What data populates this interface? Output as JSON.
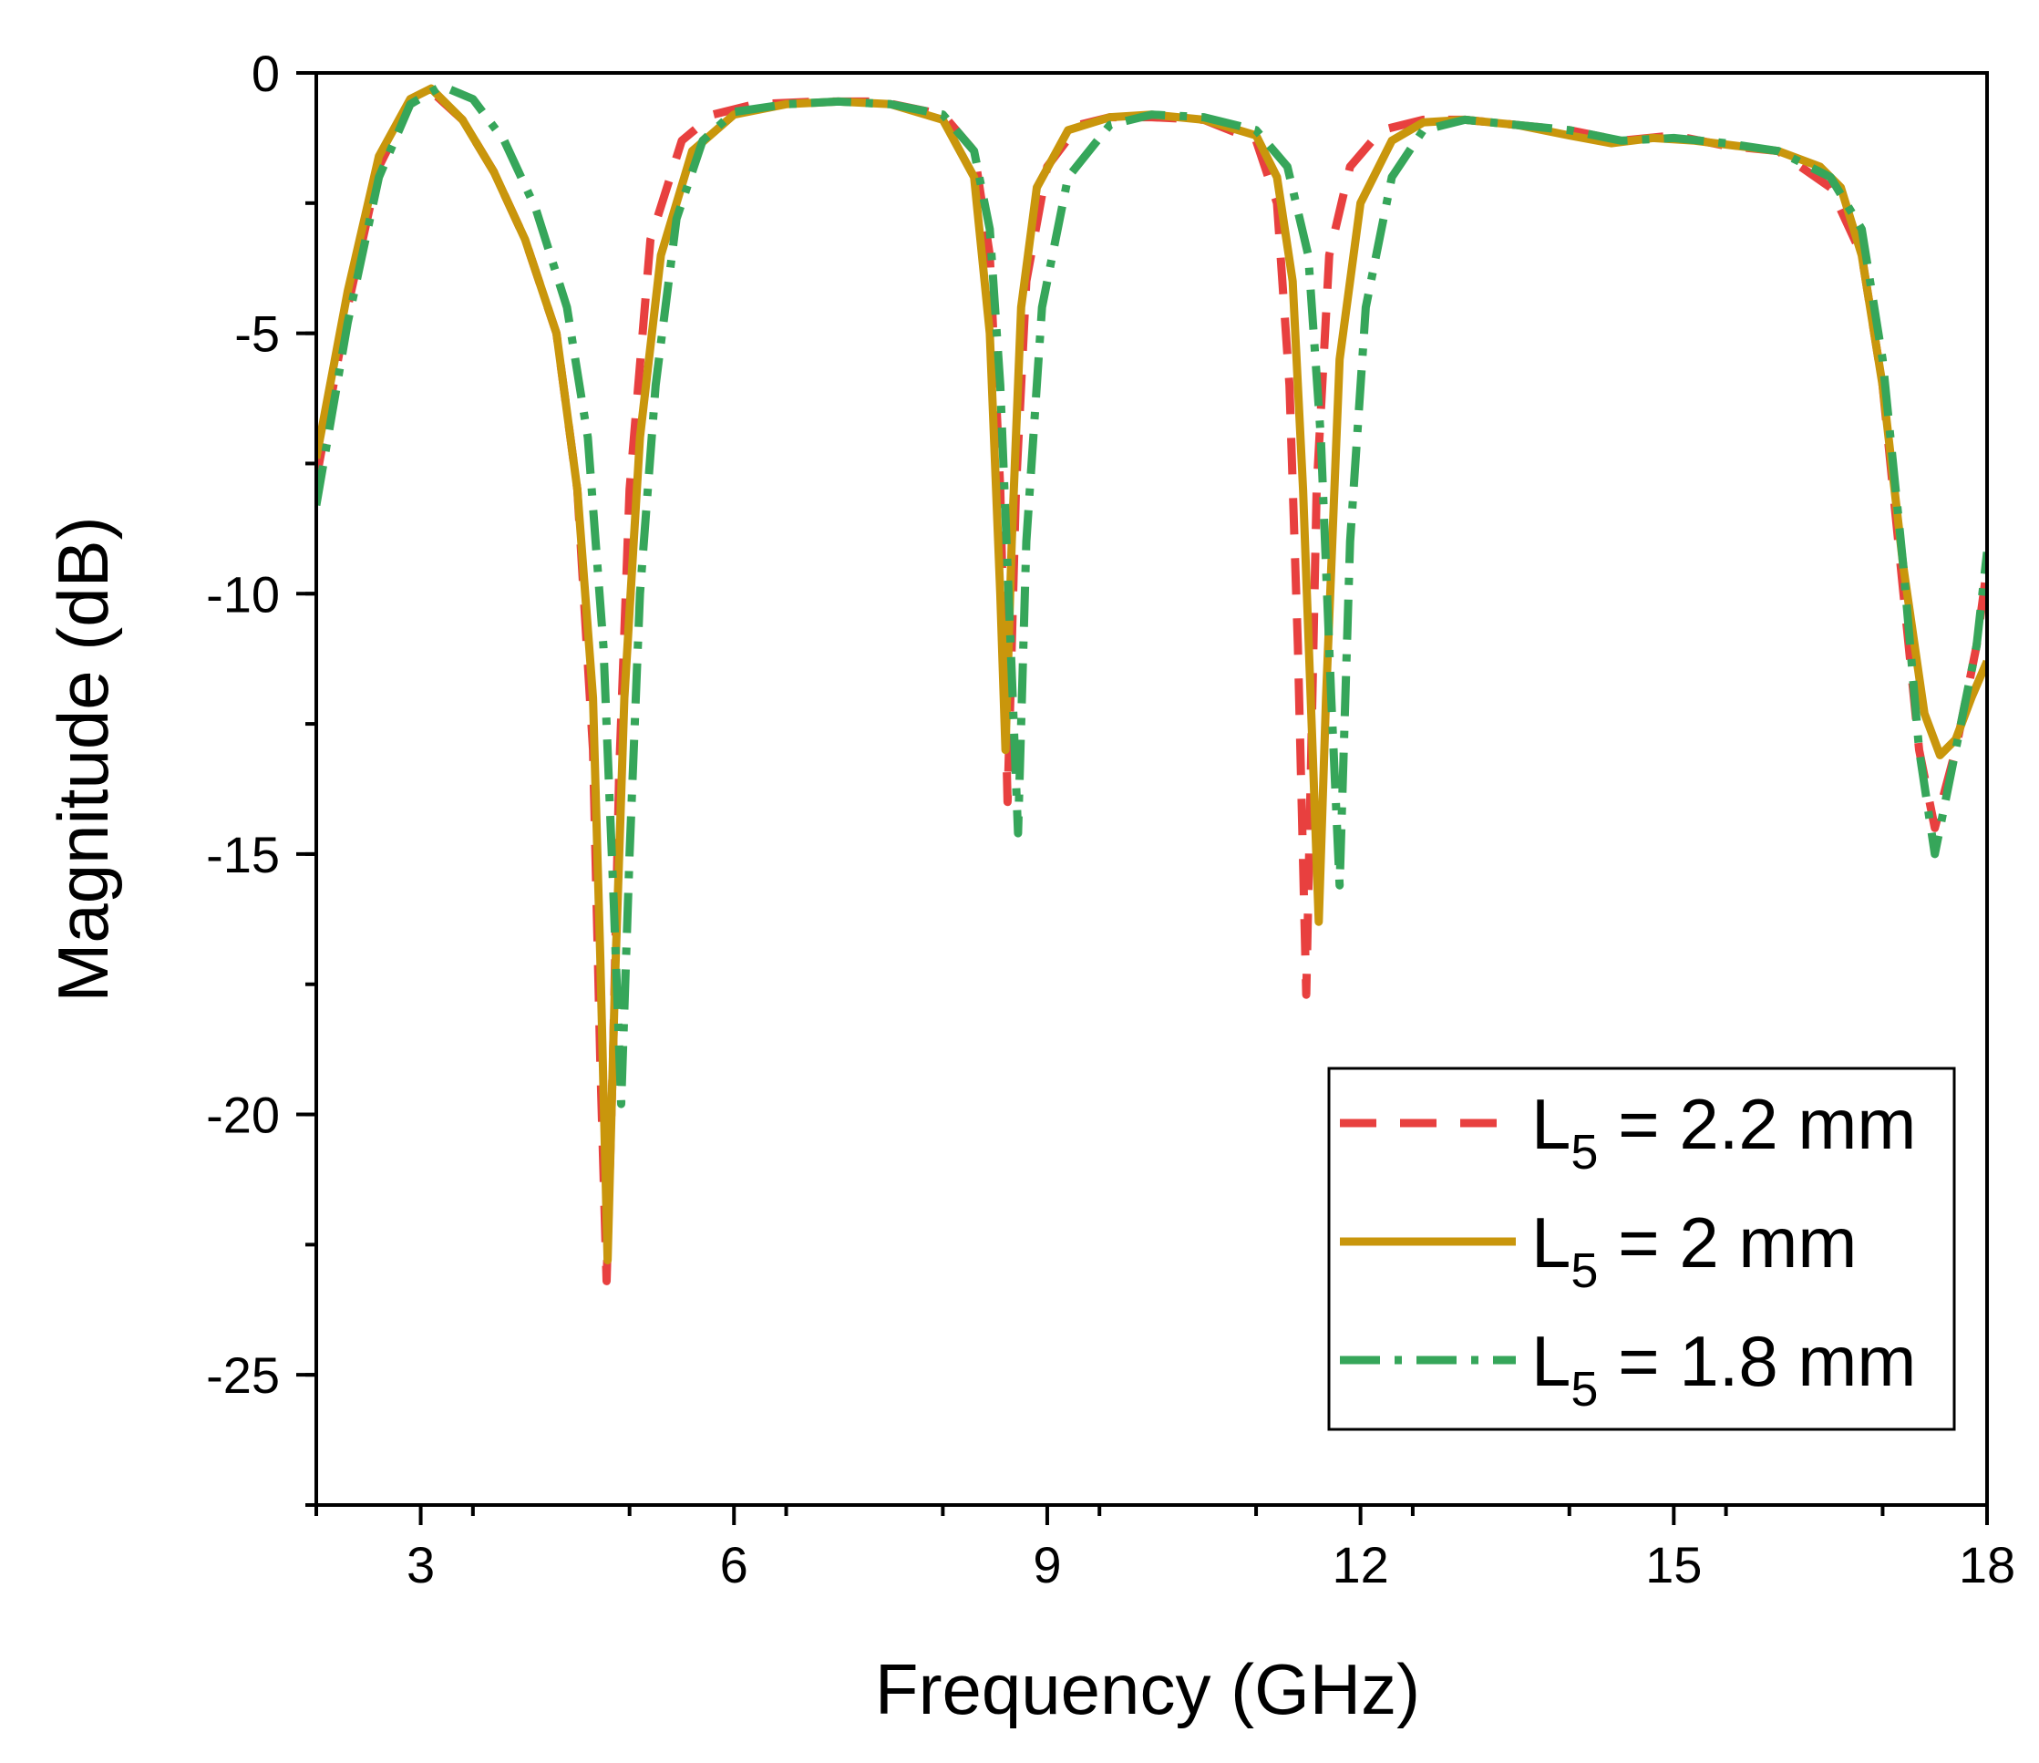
{
  "chart_data": {
    "type": "line",
    "title": "",
    "xlabel": "Frequency (GHz)",
    "ylabel": "Magnitude (dB)",
    "xlim": [
      2,
      18
    ],
    "ylim": [
      -27.5,
      0
    ],
    "x_ticks": [
      3,
      6,
      9,
      12,
      15,
      18
    ],
    "x_tick_labels": [
      "3",
      "6",
      "9",
      "12",
      "15",
      "18"
    ],
    "y_ticks": [
      0,
      -5,
      -10,
      -15,
      -20,
      -25
    ],
    "y_tick_labels": [
      "0",
      "-5",
      "-10",
      "-15",
      "-20",
      "-25"
    ],
    "grid": false,
    "legend_position": "lower-right",
    "series": [
      {
        "name": "L5 = 2.2 mm",
        "legend_main": "L",
        "legend_sub": "5",
        "legend_rest": " = 2.2 mm",
        "color": "#e8403f",
        "dash": "40,26",
        "x": [
          2,
          2.3,
          2.6,
          2.9,
          3.1,
          3.4,
          3.7,
          4.0,
          4.3,
          4.5,
          4.65,
          4.72,
          4.78,
          4.84,
          4.9,
          5.0,
          5.2,
          5.5,
          5.8,
          6.2,
          6.8,
          7.4,
          8.0,
          8.3,
          8.45,
          8.55,
          8.62,
          8.7,
          8.8,
          9.0,
          9.3,
          9.6,
          10.0,
          10.5,
          11.0,
          11.2,
          11.32,
          11.4,
          11.48,
          11.58,
          11.7,
          11.9,
          12.2,
          12.6,
          13.0,
          13.5,
          14.0,
          14.5,
          15.0,
          15.5,
          16.0,
          16.5,
          16.8,
          17.0,
          17.2,
          17.35,
          17.5,
          17.7,
          17.9,
          18.0
        ],
        "values": [
          -7.8,
          -4.5,
          -1.8,
          -0.6,
          -0.35,
          -0.9,
          -1.9,
          -3.2,
          -5.0,
          -8.0,
          -13.0,
          -19.0,
          -23.2,
          -19.0,
          -13.5,
          -8.0,
          -3.2,
          -1.3,
          -0.8,
          -0.6,
          -0.55,
          -0.55,
          -0.8,
          -1.5,
          -3.5,
          -8.0,
          -14.0,
          -8.0,
          -4.0,
          -1.8,
          -1.0,
          -0.85,
          -0.85,
          -0.9,
          -1.3,
          -2.5,
          -6.0,
          -11.0,
          -17.7,
          -8.0,
          -3.5,
          -1.8,
          -1.1,
          -0.9,
          -0.9,
          -1.0,
          -1.1,
          -1.3,
          -1.2,
          -1.4,
          -1.5,
          -2.2,
          -3.5,
          -6.0,
          -10.0,
          -13.0,
          -14.5,
          -13.0,
          -11.0,
          -9.5
        ]
      },
      {
        "name": "L5 = 2 mm",
        "legend_main": "L",
        "legend_sub": "5",
        "legend_rest": " = 2 mm",
        "color": "#c9960c",
        "dash": "",
        "x": [
          2,
          2.3,
          2.6,
          2.9,
          3.1,
          3.4,
          3.7,
          4.0,
          4.3,
          4.5,
          4.65,
          4.72,
          4.79,
          4.86,
          4.95,
          5.1,
          5.3,
          5.6,
          6.0,
          6.5,
          7.0,
          7.5,
          8.0,
          8.3,
          8.45,
          8.55,
          8.6,
          8.66,
          8.75,
          8.9,
          9.2,
          9.6,
          10.0,
          10.5,
          11.0,
          11.2,
          11.35,
          11.45,
          11.55,
          11.6,
          11.67,
          11.8,
          12.0,
          12.3,
          12.6,
          13.0,
          13.5,
          14.0,
          14.4,
          14.8,
          15.2,
          15.6,
          16.0,
          16.4,
          16.6,
          16.8,
          17.0,
          17.2,
          17.4,
          17.55,
          17.7,
          17.85,
          18.0
        ],
        "values": [
          -7.4,
          -4.2,
          -1.6,
          -0.5,
          -0.3,
          -0.9,
          -1.9,
          -3.2,
          -5.0,
          -8.0,
          -12.0,
          -17.0,
          -22.8,
          -17.5,
          -12.0,
          -7.0,
          -3.5,
          -1.5,
          -0.8,
          -0.6,
          -0.55,
          -0.6,
          -0.9,
          -2.0,
          -5.0,
          -10.0,
          -13.0,
          -9.0,
          -4.5,
          -2.2,
          -1.1,
          -0.85,
          -0.8,
          -0.9,
          -1.2,
          -2.0,
          -4.0,
          -8.0,
          -13.5,
          -16.3,
          -12.0,
          -5.5,
          -2.5,
          -1.3,
          -0.95,
          -0.9,
          -1.0,
          -1.2,
          -1.35,
          -1.25,
          -1.3,
          -1.4,
          -1.5,
          -1.8,
          -2.2,
          -3.5,
          -6.0,
          -9.5,
          -12.3,
          -13.1,
          -12.8,
          -12.0,
          -11.3
        ]
      },
      {
        "name": "L5 = 1.8 mm",
        "legend_main": "L",
        "legend_sub": "5",
        "legend_rest": " = 1.8 mm",
        "color": "#36a65a",
        "dash": "44,16,8,16",
        "x": [
          2,
          2.3,
          2.6,
          2.9,
          3.2,
          3.5,
          3.8,
          4.1,
          4.4,
          4.6,
          4.75,
          4.85,
          4.92,
          5.0,
          5.1,
          5.25,
          5.45,
          5.7,
          6.0,
          6.5,
          7.0,
          7.5,
          8.0,
          8.3,
          8.45,
          8.55,
          8.65,
          8.72,
          8.8,
          8.95,
          9.2,
          9.6,
          10.0,
          10.5,
          11.0,
          11.3,
          11.5,
          11.62,
          11.72,
          11.8,
          11.9,
          12.05,
          12.3,
          12.6,
          13.0,
          13.5,
          14.0,
          14.5,
          15.0,
          15.5,
          16.0,
          16.5,
          16.8,
          17.0,
          17.2,
          17.35,
          17.5,
          17.7,
          17.9,
          18.0
        ],
        "values": [
          -8.3,
          -4.8,
          -2.0,
          -0.6,
          -0.25,
          -0.5,
          -1.3,
          -2.6,
          -4.5,
          -7.0,
          -11.0,
          -16.0,
          -19.8,
          -15.0,
          -10.0,
          -6.0,
          -2.8,
          -1.3,
          -0.75,
          -0.6,
          -0.55,
          -0.6,
          -0.8,
          -1.5,
          -3.0,
          -6.0,
          -11.0,
          -14.6,
          -9.0,
          -4.5,
          -2.0,
          -1.0,
          -0.8,
          -0.85,
          -1.1,
          -1.8,
          -3.5,
          -7.0,
          -12.0,
          -15.6,
          -9.0,
          -4.5,
          -2.0,
          -1.1,
          -0.9,
          -1.0,
          -1.1,
          -1.3,
          -1.25,
          -1.35,
          -1.5,
          -2.0,
          -3.0,
          -5.5,
          -9.5,
          -13.0,
          -15.0,
          -13.0,
          -11.0,
          -9.2
        ]
      }
    ]
  }
}
